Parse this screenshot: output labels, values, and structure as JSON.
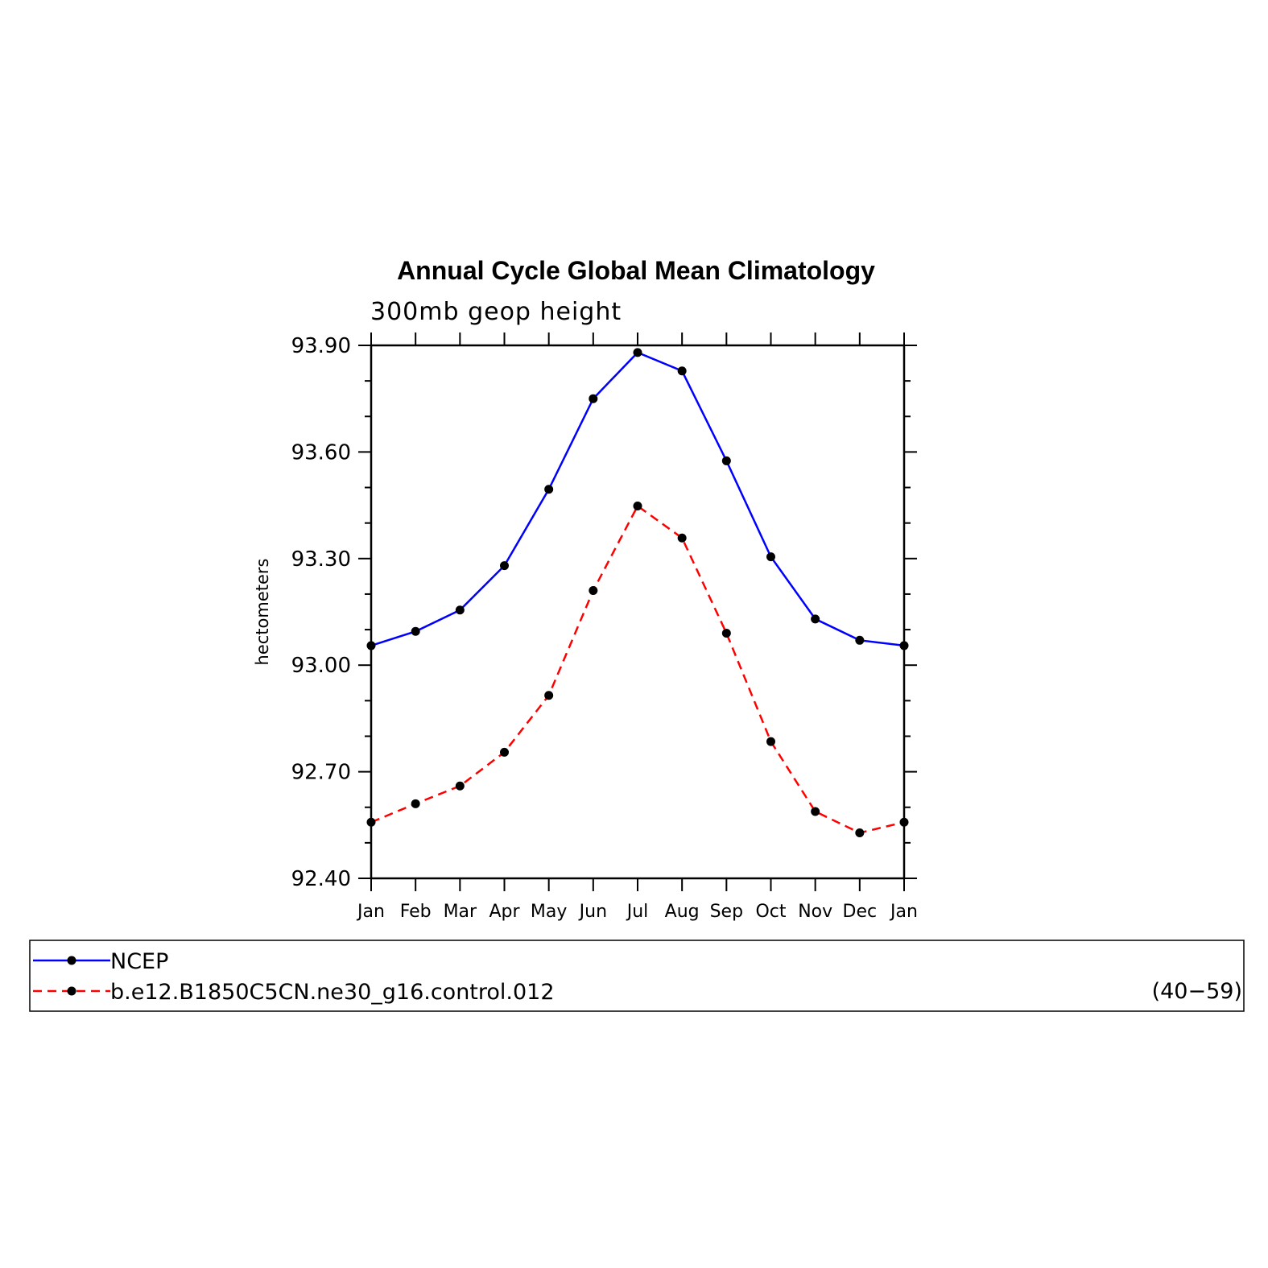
{
  "chart_data": {
    "type": "line",
    "title": "Annual Cycle Global Mean Climatology",
    "subtitle": "300mb geop height",
    "ylabel": "hectometers",
    "ylim": [
      92.4,
      93.9
    ],
    "yticks": [
      "93.90",
      "93.60",
      "93.30",
      "93.00",
      "92.70",
      "92.40"
    ],
    "categories": [
      "Jan",
      "Feb",
      "Mar",
      "Apr",
      "May",
      "Jun",
      "Jul",
      "Aug",
      "Sep",
      "Oct",
      "Nov",
      "Dec",
      "Jan"
    ],
    "series": [
      {
        "name": "NCEP",
        "color": "#0000ff",
        "dash": "solid",
        "values": [
          93.055,
          93.095,
          93.155,
          93.28,
          93.495,
          93.75,
          93.88,
          93.828,
          93.575,
          93.305,
          93.13,
          93.07,
          93.055
        ]
      },
      {
        "name": "b.e12.B1850C5CN.ne30_g16.control.012",
        "color": "#ff0000",
        "dash": "dashed",
        "values": [
          92.558,
          92.61,
          92.66,
          92.755,
          92.915,
          93.21,
          93.448,
          93.358,
          93.09,
          92.785,
          92.588,
          92.528,
          92.558
        ]
      }
    ],
    "legend": {
      "placement": "bottom",
      "years": "(40−59)"
    }
  }
}
